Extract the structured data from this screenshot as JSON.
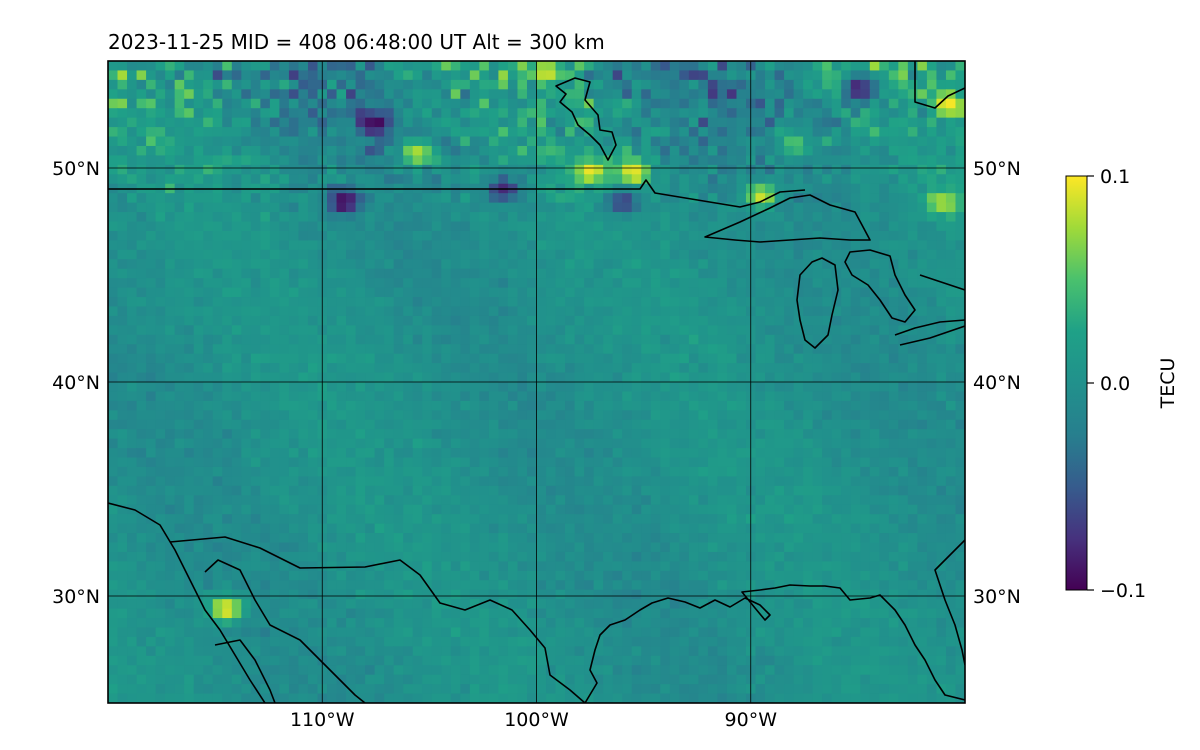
{
  "title": "2023-11-25  MID = 408    06:48:00  UT  Alt = 300 km",
  "map": {
    "lon_range": [
      -120,
      -80
    ],
    "lat_range": [
      25,
      55
    ],
    "lon_ticks": [
      {
        "value": -110,
        "label": "110°W"
      },
      {
        "value": -100,
        "label": "100°W"
      },
      {
        "value": -90,
        "label": "90°W"
      }
    ],
    "lat_ticks": [
      {
        "value": 30,
        "label": "30°N"
      },
      {
        "value": 40,
        "label": "40°N"
      },
      {
        "value": 50,
        "label": "50°N"
      }
    ],
    "gridlines": true,
    "coastlines": true,
    "colormap": "viridis"
  },
  "colorbar": {
    "label": "TECU",
    "range": [
      -0.1,
      0.1
    ],
    "ticks": [
      {
        "value": 0.1,
        "label": "0.1"
      },
      {
        "value": 0.0,
        "label": "0.0"
      },
      {
        "value": -0.1,
        "label": "−0.1"
      }
    ]
  },
  "chart_data": {
    "type": "heatmap",
    "title": "2023-11-25  MID = 408    06:48:00  UT  Alt = 300 km",
    "xlabel": "",
    "ylabel": "",
    "x_range": [
      -120,
      -80
    ],
    "y_range": [
      25,
      55
    ],
    "value_range": [
      -0.1,
      0.1
    ],
    "value_label": "TECU",
    "background_value": 0.0,
    "hotspots": [
      {
        "lon": -114.5,
        "lat": 29.4,
        "value": 0.1
      },
      {
        "lon": -80.8,
        "lat": 53.0,
        "value": 0.1
      },
      {
        "lon": -95.5,
        "lat": 49.8,
        "value": 0.1
      },
      {
        "lon": -97.5,
        "lat": 49.8,
        "value": 0.1
      },
      {
        "lon": -89.5,
        "lat": 48.7,
        "value": 0.09
      },
      {
        "lon": -81.0,
        "lat": 48.4,
        "value": 0.08
      },
      {
        "lon": -105.5,
        "lat": 50.7,
        "value": 0.08
      },
      {
        "lon": -99.5,
        "lat": 54.5,
        "value": 0.09
      },
      {
        "lon": -86.0,
        "lat": 54.0,
        "value": 0.06
      },
      {
        "lon": -88.0,
        "lat": 51.2,
        "value": 0.05
      },
      {
        "lon": -107.5,
        "lat": 52.1,
        "value": -0.1
      },
      {
        "lon": -109.0,
        "lat": 48.4,
        "value": -0.1
      },
      {
        "lon": -85.0,
        "lat": 53.7,
        "value": -0.09
      },
      {
        "lon": -101.5,
        "lat": 49.0,
        "value": -0.08
      },
      {
        "lon": -96.0,
        "lat": 48.4,
        "value": -0.07
      }
    ]
  }
}
